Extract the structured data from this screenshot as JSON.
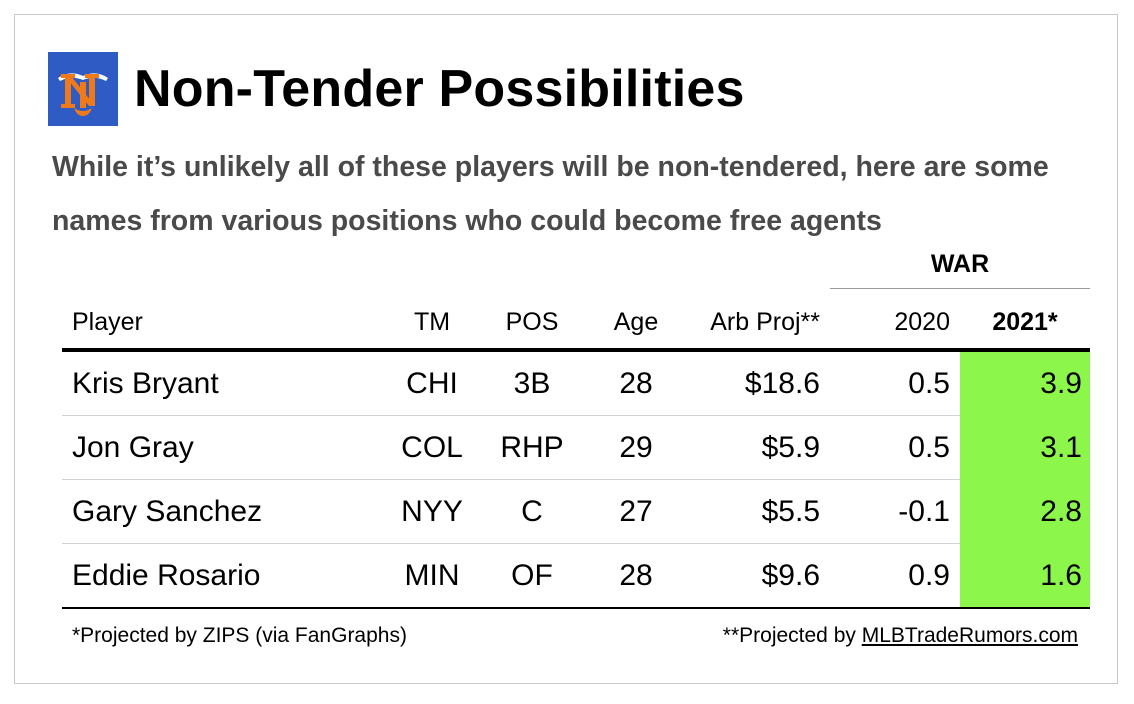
{
  "title": "Non-Tender Possibilities",
  "subtitle": "While it’s unlikely all of these players will be non-tendered, here are some names from various positions who could become free agents",
  "colors": {
    "logo_bg": "#2e5cc4",
    "logo_orange": "#f07a1a",
    "highlight_green": "#8cf74a"
  },
  "icons": {
    "logo": "mets-ny-logo-icon"
  },
  "chart_data": {
    "type": "table",
    "group_header": "WAR",
    "columns": [
      "Player",
      "TM",
      "POS",
      "Age",
      "Arb Proj**",
      "2020",
      "2021*"
    ],
    "rows": [
      [
        "Kris Bryant",
        "CHI",
        "3B",
        "28",
        "$18.6",
        "0.5",
        "3.9"
      ],
      [
        "Jon Gray",
        "COL",
        "RHP",
        "29",
        "$5.9",
        "0.5",
        "3.1"
      ],
      [
        "Gary Sanchez",
        "NYY",
        "C",
        "27",
        "$5.5",
        "-0.1",
        "2.8"
      ],
      [
        "Eddie Rosario",
        "MIN",
        "OF",
        "28",
        "$9.6",
        "0.9",
        "1.6"
      ]
    ],
    "highlight_column": "2021*"
  },
  "footnotes": {
    "left": "*Projected by ZIPS (via FanGraphs)",
    "right_prefix": "**Projected by ",
    "right_site": "MLBTradeRumors.com"
  }
}
